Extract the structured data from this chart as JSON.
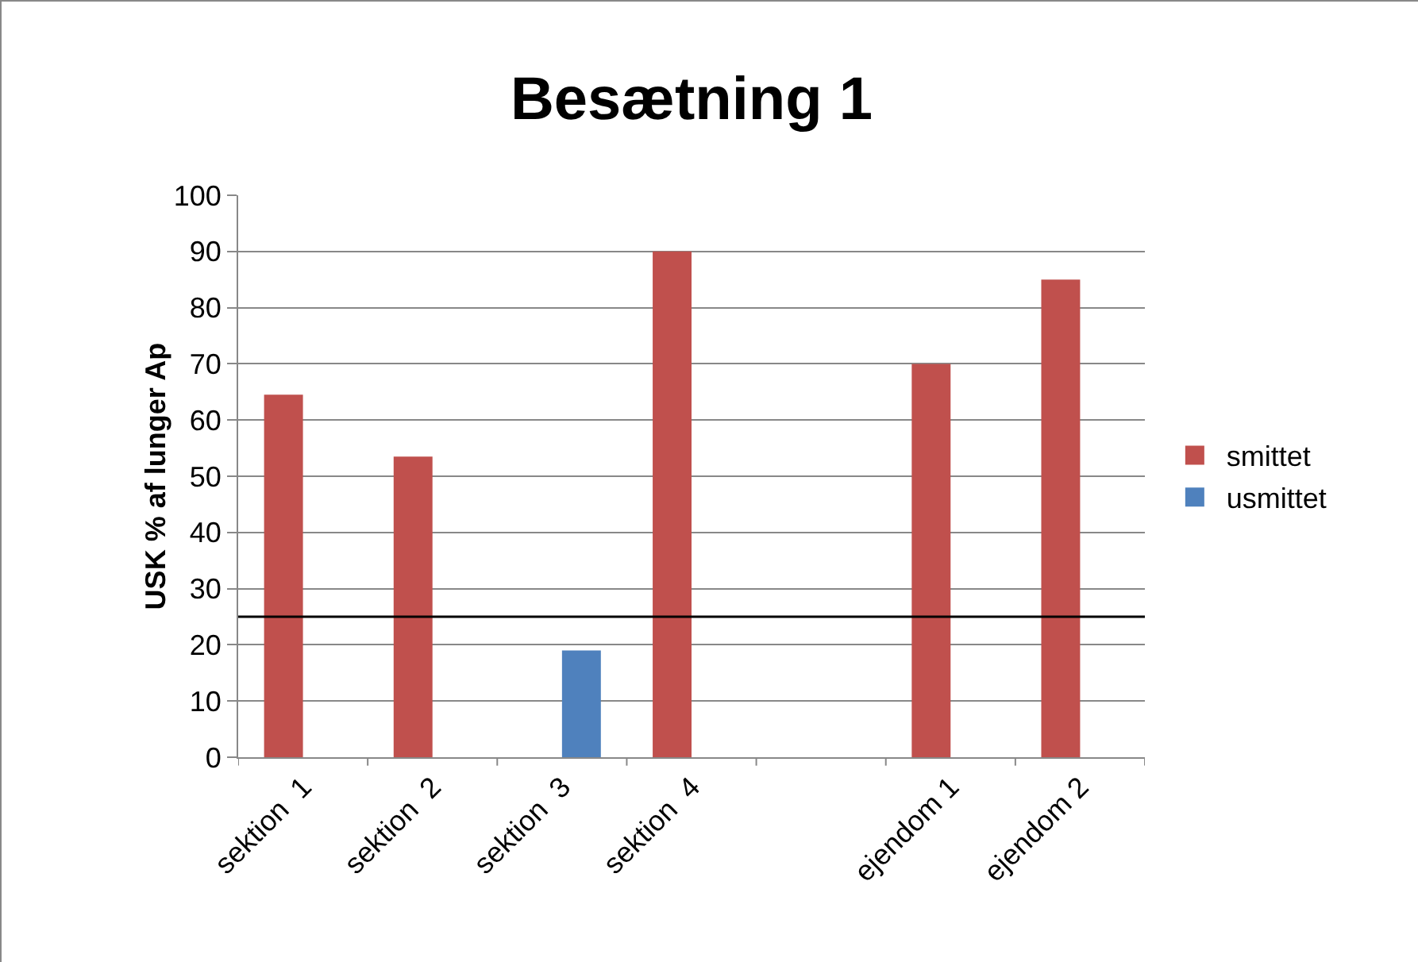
{
  "chart_data": {
    "type": "bar",
    "title": "Besætning 1",
    "ylabel": "USK % af lunger Ap",
    "categories": [
      "sektion  1",
      "sektion  2",
      "sektion  3",
      "sektion  4",
      null,
      "ejendom 1",
      "ejendom 2"
    ],
    "series": [
      {
        "name": "smittet",
        "color": "#c0504d",
        "values": [
          64.5,
          53.5,
          null,
          90,
          null,
          70,
          85
        ]
      },
      {
        "name": "usmittet",
        "color": "#4f81bd",
        "values": [
          null,
          null,
          19,
          null,
          null,
          null,
          null
        ]
      }
    ],
    "ylim": [
      0,
      100
    ],
    "yticks": [
      0,
      10,
      20,
      30,
      40,
      50,
      60,
      70,
      80,
      90,
      100
    ],
    "grid": "y",
    "legend": "right",
    "ref_lines": [
      {
        "axis": "y",
        "value": 25,
        "color": "#000000"
      }
    ]
  }
}
